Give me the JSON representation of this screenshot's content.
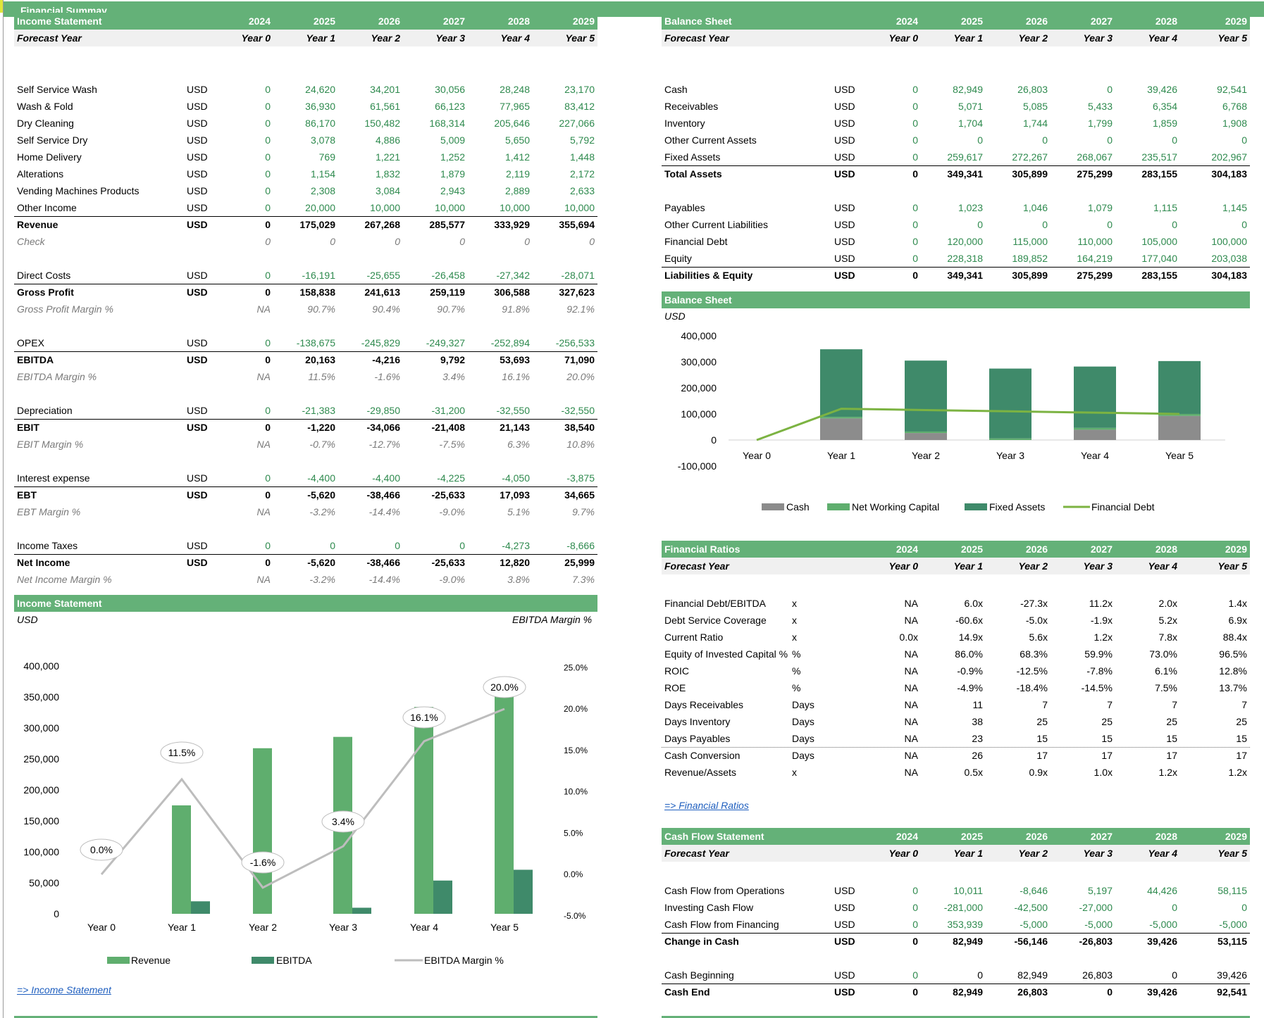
{
  "title": "Financial Summay",
  "years": [
    "2024",
    "2025",
    "2026",
    "2027",
    "2028",
    "2029"
  ],
  "forecast_label": "Forecast Year",
  "periods": [
    "Year 0",
    "Year 1",
    "Year 2",
    "Year 3",
    "Year 4",
    "Year 5"
  ],
  "income_statement": {
    "header": "Income Statement",
    "rows": [
      {
        "label": "Self Service Wash",
        "unit": "USD",
        "values": [
          "0",
          "24,620",
          "34,201",
          "30,056",
          "28,248",
          "23,170"
        ],
        "style": "g"
      },
      {
        "label": "Wash & Fold",
        "unit": "USD",
        "values": [
          "0",
          "36,930",
          "61,561",
          "66,123",
          "77,965",
          "83,412"
        ],
        "style": "g"
      },
      {
        "label": "Dry Cleaning",
        "unit": "USD",
        "values": [
          "0",
          "86,170",
          "150,482",
          "168,314",
          "205,646",
          "227,066"
        ],
        "style": "g"
      },
      {
        "label": "Self Service Dry",
        "unit": "USD",
        "values": [
          "0",
          "3,078",
          "4,886",
          "5,009",
          "5,650",
          "5,792"
        ],
        "style": "g"
      },
      {
        "label": "Home Delivery",
        "unit": "USD",
        "values": [
          "0",
          "769",
          "1,221",
          "1,252",
          "1,412",
          "1,448"
        ],
        "style": "g"
      },
      {
        "label": "Alterations",
        "unit": "USD",
        "values": [
          "0",
          "1,154",
          "1,832",
          "1,879",
          "2,119",
          "2,172"
        ],
        "style": "g"
      },
      {
        "label": "Vending Machines Products",
        "unit": "USD",
        "values": [
          "0",
          "2,308",
          "3,084",
          "2,943",
          "2,889",
          "2,633"
        ],
        "style": "g"
      },
      {
        "label": "Other Income",
        "unit": "USD",
        "values": [
          "0",
          "20,000",
          "10,000",
          "10,000",
          "10,000",
          "10,000"
        ],
        "style": "g"
      },
      {
        "label": "Revenue",
        "unit": "USD",
        "values": [
          "0",
          "175,029",
          "267,268",
          "285,577",
          "333,929",
          "355,694"
        ],
        "style": "b"
      },
      {
        "label": "Check",
        "unit": "",
        "values": [
          "0",
          "0",
          "0",
          "0",
          "0",
          "0"
        ],
        "style": "it"
      },
      {
        "label": "Direct Costs",
        "unit": "USD",
        "values": [
          "0",
          "-16,191",
          "-25,655",
          "-26,458",
          "-27,342",
          "-28,071"
        ],
        "style": "g"
      },
      {
        "label": "Gross Profit",
        "unit": "USD",
        "values": [
          "0",
          "158,838",
          "241,613",
          "259,119",
          "306,588",
          "327,623"
        ],
        "style": "b"
      },
      {
        "label": "Gross Profit Margin %",
        "unit": "",
        "values": [
          "NA",
          "90.7%",
          "90.4%",
          "90.7%",
          "91.8%",
          "92.1%"
        ],
        "style": "it"
      },
      {
        "label": "OPEX",
        "unit": "USD",
        "values": [
          "0",
          "-138,675",
          "-245,829",
          "-249,327",
          "-252,894",
          "-256,533"
        ],
        "style": "g"
      },
      {
        "label": "EBITDA",
        "unit": "USD",
        "values": [
          "0",
          "20,163",
          "-4,216",
          "9,792",
          "53,693",
          "71,090"
        ],
        "style": "b"
      },
      {
        "label": "EBITDA Margin %",
        "unit": "",
        "values": [
          "NA",
          "11.5%",
          "-1.6%",
          "3.4%",
          "16.1%",
          "20.0%"
        ],
        "style": "it"
      },
      {
        "label": "Depreciation",
        "unit": "USD",
        "values": [
          "0",
          "-21,383",
          "-29,850",
          "-31,200",
          "-32,550",
          "-32,550"
        ],
        "style": "g"
      },
      {
        "label": "EBIT",
        "unit": "USD",
        "values": [
          "0",
          "-1,220",
          "-34,066",
          "-21,408",
          "21,143",
          "38,540"
        ],
        "style": "b"
      },
      {
        "label": "EBIT Margin %",
        "unit": "",
        "values": [
          "NA",
          "-0.7%",
          "-12.7%",
          "-7.5%",
          "6.3%",
          "10.8%"
        ],
        "style": "it"
      },
      {
        "label": "Interest expense",
        "unit": "USD",
        "values": [
          "0",
          "-4,400",
          "-4,400",
          "-4,225",
          "-4,050",
          "-3,875"
        ],
        "style": "g"
      },
      {
        "label": "EBT",
        "unit": "USD",
        "values": [
          "0",
          "-5,620",
          "-38,466",
          "-25,633",
          "17,093",
          "34,665"
        ],
        "style": "b"
      },
      {
        "label": "EBT Margin %",
        "unit": "",
        "values": [
          "NA",
          "-3.2%",
          "-14.4%",
          "-9.0%",
          "5.1%",
          "9.7%"
        ],
        "style": "it"
      },
      {
        "label": "Income Taxes",
        "unit": "USD",
        "values": [
          "0",
          "0",
          "0",
          "0",
          "-4,273",
          "-8,666"
        ],
        "style": "g"
      },
      {
        "label": "Net Income",
        "unit": "USD",
        "values": [
          "0",
          "-5,620",
          "-38,466",
          "-25,633",
          "12,820",
          "25,999"
        ],
        "style": "b"
      },
      {
        "label": "Net Income Margin %",
        "unit": "",
        "values": [
          "NA",
          "-3.2%",
          "-14.4%",
          "-9.0%",
          "3.8%",
          "7.3%"
        ],
        "style": "it"
      }
    ]
  },
  "balance_sheet": {
    "header": "Balance Sheet",
    "rows": [
      {
        "label": "Cash",
        "unit": "USD",
        "values": [
          "0",
          "82,949",
          "26,803",
          "0",
          "39,426",
          "92,541"
        ],
        "style": "g"
      },
      {
        "label": "Receivables",
        "unit": "USD",
        "values": [
          "0",
          "5,071",
          "5,085",
          "5,433",
          "6,354",
          "6,768"
        ],
        "style": "g"
      },
      {
        "label": "Inventory",
        "unit": "USD",
        "values": [
          "0",
          "1,704",
          "1,744",
          "1,799",
          "1,859",
          "1,908"
        ],
        "style": "g"
      },
      {
        "label": "Other Current Assets",
        "unit": "USD",
        "values": [
          "0",
          "0",
          "0",
          "0",
          "0",
          "0"
        ],
        "style": "g"
      },
      {
        "label": "Fixed Assets",
        "unit": "USD",
        "values": [
          "0",
          "259,617",
          "272,267",
          "268,067",
          "235,517",
          "202,967"
        ],
        "style": "g"
      },
      {
        "label": "Total Assets",
        "unit": "USD",
        "values": [
          "0",
          "349,341",
          "305,899",
          "275,299",
          "283,155",
          "304,183"
        ],
        "style": "b"
      },
      {
        "label": "Payables",
        "unit": "USD",
        "values": [
          "0",
          "1,023",
          "1,046",
          "1,079",
          "1,115",
          "1,145"
        ],
        "style": "g"
      },
      {
        "label": "Other Current Liabilities",
        "unit": "USD",
        "values": [
          "0",
          "0",
          "0",
          "0",
          "0",
          "0"
        ],
        "style": "g"
      },
      {
        "label": "Financial Debt",
        "unit": "USD",
        "values": [
          "0",
          "120,000",
          "115,000",
          "110,000",
          "105,000",
          "100,000"
        ],
        "style": "g"
      },
      {
        "label": "Equity",
        "unit": "USD",
        "values": [
          "0",
          "228,318",
          "189,852",
          "164,219",
          "177,040",
          "203,038"
        ],
        "style": "g"
      },
      {
        "label": "Liabilities & Equity",
        "unit": "USD",
        "values": [
          "0",
          "349,341",
          "305,899",
          "275,299",
          "283,155",
          "304,183"
        ],
        "style": "b"
      }
    ]
  },
  "bs_chart": {
    "header": "Balance Sheet",
    "unit": "USD",
    "y_ticks": [
      "400,000",
      "300,000",
      "200,000",
      "100,000",
      "0",
      "-100,000"
    ],
    "legend": [
      "Cash",
      "Net Working Capital",
      "Fixed Assets",
      "Financial Debt"
    ],
    "colors": {
      "cash": "#8c8c8c",
      "nwc": "#5fae6e",
      "fixed": "#3f8a6a",
      "debt": "#7cb342"
    }
  },
  "chart_data": [
    {
      "type": "bar",
      "title": "Balance Sheet",
      "ylabel": "USD",
      "categories": [
        "Year 0",
        "Year 1",
        "Year 2",
        "Year 3",
        "Year 4",
        "Year 5"
      ],
      "stacked": true,
      "ylim": [
        -100000,
        400000
      ],
      "series": [
        {
          "name": "Cash",
          "values": [
            0,
            82949,
            26803,
            0,
            39426,
            92541
          ]
        },
        {
          "name": "Net Working Capital",
          "values": [
            0,
            5752,
            5783,
            6153,
            7098,
            7531
          ]
        },
        {
          "name": "Fixed Assets",
          "values": [
            0,
            259617,
            272267,
            268067,
            235517,
            202967
          ]
        },
        {
          "name": "Financial Debt",
          "type": "line",
          "values": [
            0,
            120000,
            115000,
            110000,
            105000,
            100000
          ]
        }
      ],
      "legend_position": "bottom"
    },
    {
      "type": "bar",
      "title": "Income Statement",
      "ylabel": "USD",
      "y2label": "EBITDA Margin %",
      "categories": [
        "Year 0",
        "Year 1",
        "Year 2",
        "Year 3",
        "Year 4",
        "Year 5"
      ],
      "ylim": [
        0,
        400000
      ],
      "y2lim": [
        -5,
        25
      ],
      "series": [
        {
          "name": "Revenue",
          "values": [
            0,
            175029,
            267268,
            285577,
            333929,
            355694
          ]
        },
        {
          "name": "EBITDA",
          "values": [
            0,
            20163,
            -4216,
            9792,
            53693,
            71090
          ]
        },
        {
          "name": "EBITDA Margin %",
          "type": "line",
          "axis": "y2",
          "values": [
            0,
            11.5,
            -1.6,
            3.4,
            16.1,
            20.0
          ]
        }
      ],
      "legend_position": "bottom"
    }
  ],
  "is_chart": {
    "header": "Income Statement",
    "unit": "USD",
    "right_unit": "EBITDA Margin %",
    "y_ticks": [
      "400,000",
      "350,000",
      "300,000",
      "250,000",
      "200,000",
      "150,000",
      "100,000",
      "50,000",
      "0"
    ],
    "y2_ticks": [
      "25.0%",
      "20.0%",
      "15.0%",
      "10.0%",
      "5.0%",
      "0.0%",
      "-5.0%"
    ],
    "margin_labels": [
      "0.0%",
      "11.5%",
      "-1.6%",
      "3.4%",
      "16.1%",
      "20.0%"
    ],
    "legend": [
      "Revenue",
      "EBITDA",
      "EBITDA Margin %"
    ],
    "colors": {
      "revenue": "#5fae6e",
      "ebitda": "#3f8a6a",
      "margin": "#bdbdbd"
    }
  },
  "links": {
    "income": "=> Income Statement",
    "ratios": "=> Financial Ratios"
  },
  "ratios": {
    "header": "Financial Ratios",
    "rows": [
      {
        "label": "Financial Debt/EBITDA",
        "unit": "x",
        "values": [
          "NA",
          "6.0x",
          "-27.3x",
          "11.2x",
          "2.0x",
          "1.4x"
        ]
      },
      {
        "label": "Debt Service Coverage",
        "unit": "x",
        "values": [
          "NA",
          "-60.6x",
          "-5.0x",
          "-1.9x",
          "5.2x",
          "6.9x"
        ]
      },
      {
        "label": "Current Ratio",
        "unit": "x",
        "values": [
          "0.0x",
          "14.9x",
          "5.6x",
          "1.2x",
          "7.8x",
          "88.4x"
        ]
      },
      {
        "label": "Equity of Invested Capital %",
        "unit": "%",
        "values": [
          "NA",
          "86.0%",
          "68.3%",
          "59.9%",
          "73.0%",
          "96.5%"
        ]
      },
      {
        "label": "ROIC",
        "unit": "%",
        "values": [
          "NA",
          "-0.9%",
          "-12.5%",
          "-7.8%",
          "6.1%",
          "12.8%"
        ]
      },
      {
        "label": "ROE",
        "unit": "%",
        "values": [
          "NA",
          "-4.9%",
          "-18.4%",
          "-14.5%",
          "7.5%",
          "13.7%"
        ]
      },
      {
        "label": "Days Receivables",
        "unit": "Days",
        "values": [
          "NA",
          "11",
          "7",
          "7",
          "7",
          "7"
        ]
      },
      {
        "label": "Days Inventory",
        "unit": "Days",
        "values": [
          "NA",
          "38",
          "25",
          "25",
          "25",
          "25"
        ]
      },
      {
        "label": "Days Payables",
        "unit": "Days",
        "values": [
          "NA",
          "23",
          "15",
          "15",
          "15",
          "15"
        ]
      },
      {
        "label": "Cash Conversion",
        "unit": "Days",
        "values": [
          "NA",
          "26",
          "17",
          "17",
          "17",
          "17"
        ]
      },
      {
        "label": "Revenue/Assets",
        "unit": "x",
        "values": [
          "NA",
          "0.5x",
          "0.9x",
          "1.0x",
          "1.2x",
          "1.2x"
        ]
      }
    ]
  },
  "cash_flow": {
    "header": "Cash Flow Statement",
    "rows": [
      {
        "label": "Cash Flow from Operations",
        "unit": "USD",
        "values": [
          "0",
          "10,011",
          "-8,646",
          "5,197",
          "44,426",
          "58,115"
        ],
        "style": "g"
      },
      {
        "label": "Investing Cash Flow",
        "unit": "USD",
        "values": [
          "0",
          "-281,000",
          "-42,500",
          "-27,000",
          "0",
          "0"
        ],
        "style": "g"
      },
      {
        "label": "Cash Flow from Financing",
        "unit": "USD",
        "values": [
          "0",
          "353,939",
          "-5,000",
          "-5,000",
          "-5,000",
          "-5,000"
        ],
        "style": "g"
      },
      {
        "label": "Change in Cash",
        "unit": "USD",
        "values": [
          "0",
          "82,949",
          "-56,146",
          "-26,803",
          "39,426",
          "53,115"
        ],
        "style": "b"
      },
      {
        "label": "Cash Beginning",
        "unit": "USD",
        "values": [
          "0",
          "0",
          "82,949",
          "26,803",
          "0",
          "39,426"
        ],
        "style": "mix"
      },
      {
        "label": "Cash End",
        "unit": "USD",
        "values": [
          "0",
          "82,949",
          "26,803",
          "0",
          "39,426",
          "92,541"
        ],
        "style": "b"
      }
    ]
  }
}
